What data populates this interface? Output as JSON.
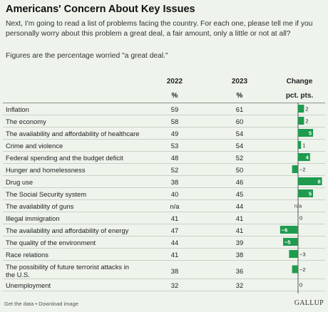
{
  "title": "Americans' Concern About Key Issues",
  "subtitle": "Next, I'm going to read a list of problems facing the country. For each one, please tell me if you personally worry about this problem a great deal, a fair amount, only a little or not at all?",
  "note": "Figures are the percentage worried \"a great deal.\"",
  "headers": {
    "col_2022": "2022",
    "col_2023": "2023",
    "col_change": "Change",
    "unit_pct": "%",
    "unit_pct2": "%",
    "unit_change": "pct. pts."
  },
  "footer": {
    "links": "Get the data • Download image",
    "brand": "GALLUP"
  },
  "colors": {
    "bar": "#1e9b4e",
    "background": "#eef3ec"
  },
  "chart_data": {
    "type": "table",
    "columns": [
      "2022",
      "2023",
      "Change"
    ],
    "rows": [
      {
        "label": "Inflation",
        "v2022": "59",
        "v2023": "61",
        "change": 2,
        "change_label": "2"
      },
      {
        "label": "The economy",
        "v2022": "58",
        "v2023": "60",
        "change": 2,
        "change_label": "2"
      },
      {
        "label": "The availability and affordability of healthcare",
        "v2022": "49",
        "v2023": "54",
        "change": 5,
        "change_label": "5"
      },
      {
        "label": "Crime and violence",
        "v2022": "53",
        "v2023": "54",
        "change": 1,
        "change_label": "1"
      },
      {
        "label": "Federal spending and the budget deficit",
        "v2022": "48",
        "v2023": "52",
        "change": 4,
        "change_label": "4"
      },
      {
        "label": "Hunger and homelessness",
        "v2022": "52",
        "v2023": "50",
        "change": -2,
        "change_label": "−2"
      },
      {
        "label": "Drug use",
        "v2022": "38",
        "v2023": "46",
        "change": 8,
        "change_label": "8"
      },
      {
        "label": "The Social Security system",
        "v2022": "40",
        "v2023": "45",
        "change": 5,
        "change_label": "5"
      },
      {
        "label": "The availability of guns",
        "v2022": "n/a",
        "v2023": "44",
        "change": null,
        "change_label": "n/a"
      },
      {
        "label": "Illegal immigration",
        "v2022": "41",
        "v2023": "41",
        "change": 0,
        "change_label": "0"
      },
      {
        "label": "The availability and affordability of energy",
        "v2022": "47",
        "v2023": "41",
        "change": -6,
        "change_label": "−6"
      },
      {
        "label": "The quality of the environment",
        "v2022": "44",
        "v2023": "39",
        "change": -5,
        "change_label": "−5"
      },
      {
        "label": "Race relations",
        "v2022": "41",
        "v2023": "38",
        "change": -3,
        "change_label": "−3"
      },
      {
        "label": "The possibility of future terrorist attacks in the U.S.",
        "v2022": "38",
        "v2023": "36",
        "change": -2,
        "change_label": "−2"
      },
      {
        "label": "Unemployment",
        "v2022": "32",
        "v2023": "32",
        "change": 0,
        "change_label": "0"
      }
    ]
  }
}
